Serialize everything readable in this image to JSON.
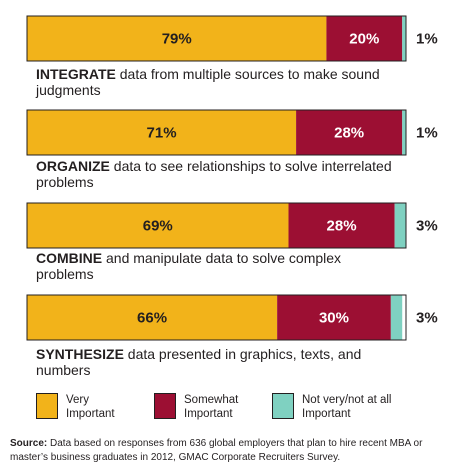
{
  "chart_data": {
    "type": "bar",
    "orientation": "horizontal",
    "stacked": true,
    "categories": [
      {
        "keyword": "INTEGRATE",
        "rest": "data from multiple sources to make sound judgments"
      },
      {
        "keyword": "ORGANIZE",
        "rest": "data to see relationships to solve interrelated problems"
      },
      {
        "keyword": "COMBINE",
        "rest": "and manipulate data to solve complex problems"
      },
      {
        "keyword": "SYNTHESIZE",
        "rest": "data presented in graphics, texts, and numbers"
      }
    ],
    "series": [
      {
        "name": "Very Important",
        "color": "#f2b31a",
        "values": [
          79,
          71,
          69,
          66
        ]
      },
      {
        "name": "Somewhat Important",
        "color": "#9c0f33",
        "values": [
          20,
          28,
          28,
          30
        ]
      },
      {
        "name": "Not very/not at all Important",
        "color": "#7fd1c1",
        "values": [
          1,
          1,
          3,
          3
        ]
      }
    ],
    "value_labels": [
      [
        "79%",
        "20%",
        "1%"
      ],
      [
        "71%",
        "28%",
        "1%"
      ],
      [
        "69%",
        "28%",
        "3%"
      ],
      [
        "66%",
        "30%",
        "3%"
      ]
    ],
    "xlim": [
      0,
      100
    ],
    "legend_position": "bottom",
    "source_label": "Source:",
    "source_text": "Data based on responses from 636 global employers that plan to hire recent MBA or master’s business graduates in 2012, GMAC Corporate Recruiters Survey."
  }
}
